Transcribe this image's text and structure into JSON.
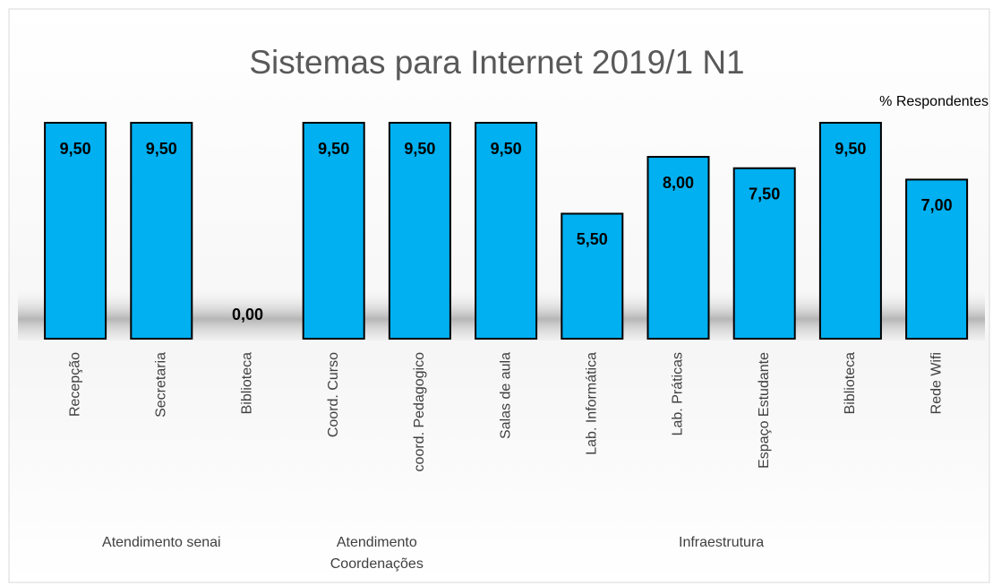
{
  "chart_data": {
    "type": "bar",
    "title": "Sistemas para Internet 2019/1 N1",
    "subtitle": "% Respondentes",
    "color": "#00b0f0",
    "ylim": [
      0,
      9.5
    ],
    "groups": [
      {
        "label": "Atendimento senai",
        "categories": [
          "Recepção",
          "Secretaria",
          "Biblioteca"
        ],
        "values": [
          9.5,
          9.5,
          0
        ],
        "value_labels": [
          "9,50",
          "9,50",
          "0,00"
        ]
      },
      {
        "label": "Atendimento Coordenações",
        "categories": [
          "Coord. Curso",
          "coord. Pedagogico"
        ],
        "values": [
          9.5,
          9.5
        ],
        "value_labels": [
          "9,50",
          "9,50"
        ]
      },
      {
        "label": "Infraestrutura",
        "categories": [
          "Salas de aula",
          "Lab. Informática",
          "Lab. Práticas",
          "Espaço Estudante",
          "Biblioteca",
          "Rede Wifi"
        ],
        "values": [
          9.5,
          5.5,
          8,
          7.5,
          9.5,
          7
        ],
        "value_labels": [
          "9,50",
          "5,50",
          "8,00",
          "7,50",
          "9,50",
          "7,00"
        ]
      }
    ]
  }
}
